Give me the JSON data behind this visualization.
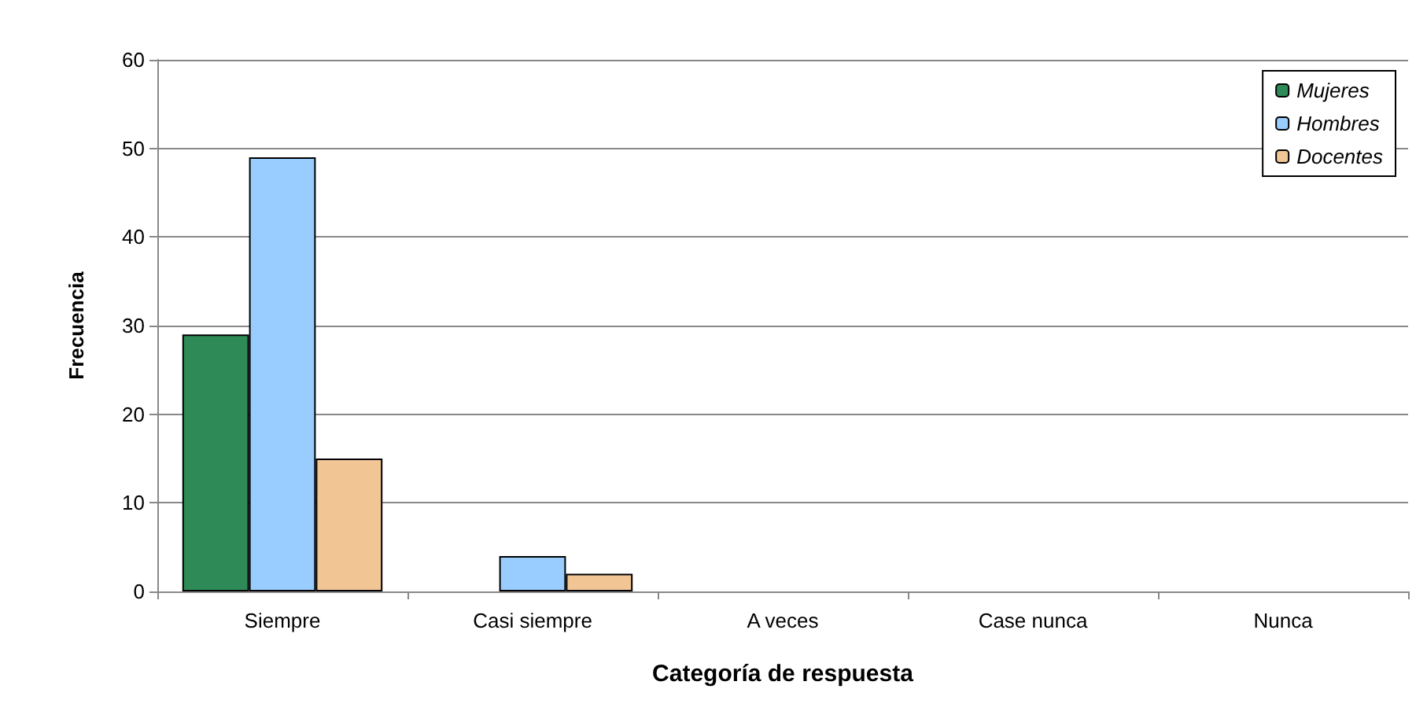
{
  "chart_data": {
    "type": "bar",
    "xlabel": "Categoría de respuesta",
    "ylabel": "Frecuencia",
    "categories": [
      "Siempre",
      "Casi siempre",
      "A veces",
      "Case nunca",
      "Nunca"
    ],
    "series": [
      {
        "name": "Mujeres",
        "color": "#2e8b57",
        "values": [
          29,
          0,
          0,
          0,
          0
        ]
      },
      {
        "name": "Hombres",
        "color": "#99ccff",
        "values": [
          49,
          4,
          0,
          0,
          0
        ]
      },
      {
        "name": "Docentes",
        "color": "#f2c594",
        "values": [
          15,
          2,
          0,
          0,
          0
        ]
      }
    ],
    "ylim": [
      0,
      60
    ],
    "yticks": [
      0,
      10,
      20,
      30,
      40,
      50,
      60
    ],
    "grid": "y",
    "legend": "top right"
  }
}
